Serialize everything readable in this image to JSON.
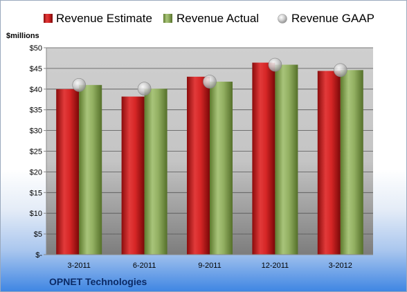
{
  "chart_data": {
    "type": "bar",
    "title": "",
    "ylabel": "$millions",
    "xlabel": "",
    "categories": [
      "3-2011",
      "6-2011",
      "9-2011",
      "12-2011",
      "3-2012"
    ],
    "series": [
      {
        "name": "Revenue Estimate",
        "type": "bar",
        "color": "#cc1f1f",
        "values": [
          40.0,
          38.2,
          43.0,
          46.4,
          44.4
        ]
      },
      {
        "name": "Revenue Actual",
        "type": "bar",
        "color": "#8cab5a",
        "values": [
          41.0,
          40.1,
          41.8,
          45.9,
          44.6
        ]
      },
      {
        "name": "Revenue GAAP",
        "type": "marker",
        "color": "#c8c8c8",
        "values": [
          41.0,
          40.1,
          41.8,
          45.9,
          44.6
        ]
      }
    ],
    "ylim": [
      0,
      50
    ],
    "yticks": [
      0,
      5,
      10,
      15,
      20,
      25,
      30,
      35,
      40,
      45,
      50
    ],
    "ytick_labels": [
      "$-",
      "$5",
      "$10",
      "$15",
      "$20",
      "$25",
      "$30",
      "$35",
      "$40",
      "$45",
      "$50"
    ],
    "grid": true,
    "legend_position": "top"
  },
  "footer": {
    "company": "OPNET Technologies"
  }
}
